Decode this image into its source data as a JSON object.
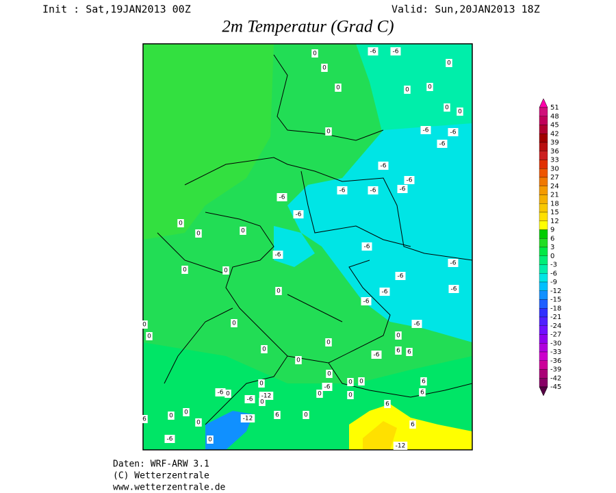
{
  "header": {
    "init": "Init : Sat,19JAN2013 00Z",
    "valid": "Valid: Sun,20JAN2013 18Z",
    "title": "2m Temperatur (Grad C)"
  },
  "map": {
    "labels": [
      "-6",
      "-6",
      "0",
      "0",
      "0",
      "0",
      "0",
      "0",
      "0",
      "0",
      "-6",
      "-6",
      "-6",
      "0",
      "-6",
      "-6",
      "-6",
      "-6",
      "-6",
      "-6",
      "-6",
      "0",
      "0",
      "0",
      "-6",
      "-6",
      "-6",
      "0",
      "0",
      "-6",
      "-6",
      "-6",
      "0",
      "-6",
      "0",
      "0",
      "-6",
      "0",
      "0",
      "0",
      "0",
      "6",
      "6",
      "-6",
      "0",
      "0",
      "6",
      "0",
      "0",
      "0",
      "-6",
      "0",
      "0",
      "-6",
      "0",
      "-12",
      "-6",
      "0",
      "6",
      "6",
      "6",
      "0",
      "-12",
      "0",
      "0",
      "6",
      "0",
      "6",
      "-6",
      "0",
      "-12"
    ]
  },
  "colorbar": {
    "labels": [
      51,
      48,
      45,
      42,
      39,
      36,
      33,
      30,
      27,
      24,
      21,
      18,
      15,
      12,
      9,
      6,
      3,
      0,
      -3,
      -6,
      -9,
      -12,
      -15,
      -18,
      -21,
      -24,
      -27,
      -30,
      -33,
      -36,
      -39,
      -42,
      -45
    ],
    "colors": [
      "#ff00aa",
      "#d0107a",
      "#c0005a",
      "#b00030",
      "#a00000",
      "#b81010",
      "#cc2020",
      "#e03000",
      "#ee5500",
      "#f07800",
      "#f49a00",
      "#f5b000",
      "#f8c800",
      "#ffe000",
      "#ffff00",
      "#00cc00",
      "#22dd22",
      "#00e844",
      "#00ee77",
      "#00eeaa",
      "#00e5e5",
      "#00c0ff",
      "#1090ff",
      "#2060ff",
      "#3030ff",
      "#5020ff",
      "#7010ff",
      "#9000ee",
      "#b000dd",
      "#cc00cc",
      "#cc0099",
      "#aa0077",
      "#880066",
      "#550044"
    ]
  },
  "footer": {
    "line1": "Daten: WRF-ARW 3.1",
    "line2": "(C) Wetterzentrale",
    "line3": "www.wetterzentrale.de"
  }
}
